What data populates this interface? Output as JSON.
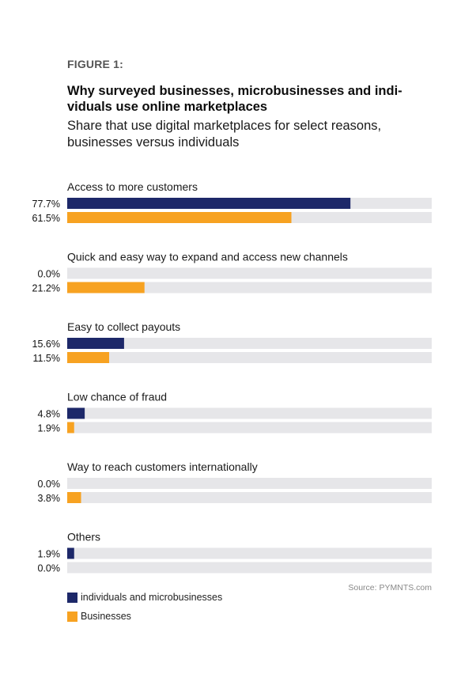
{
  "figure_label": "FIGURE 1:",
  "title": "Why surveyed businesses, microbusinesses and indi-viduals use online marketplaces",
  "subtitle": "Share that use digital marketplaces for select reasons, businesses versus individuals",
  "source": "Source: PYMNTS.com",
  "colors": {
    "individuals": "#1d2869",
    "businesses": "#f7a221",
    "track": "#e6e6e9"
  },
  "legend": [
    {
      "label": "individuals and microbusinesses",
      "color": "#1d2869"
    },
    {
      "label": "Businesses",
      "color": "#f7a221"
    }
  ],
  "chart_data": {
    "type": "bar",
    "orientation": "horizontal",
    "xlim": [
      0,
      100
    ],
    "categories": [
      "Access to more customers",
      "Quick and easy way to expand and access new channels",
      "Easy to collect payouts",
      "Low chance of fraud",
      "Way to reach customers internationally",
      "Others"
    ],
    "series": [
      {
        "name": "individuals and microbusinesses",
        "values": [
          77.7,
          0.0,
          15.6,
          4.8,
          0.0,
          1.9
        ],
        "labels": [
          "77.7%",
          "0.0%",
          "15.6%",
          "4.8%",
          "0.0%",
          "1.9%"
        ]
      },
      {
        "name": "Businesses",
        "values": [
          61.5,
          21.2,
          11.5,
          1.9,
          3.8,
          0.0
        ],
        "labels": [
          "61.5%",
          "21.2%",
          "11.5%",
          "1.9%",
          "3.8%",
          "0.0%"
        ]
      }
    ]
  }
}
